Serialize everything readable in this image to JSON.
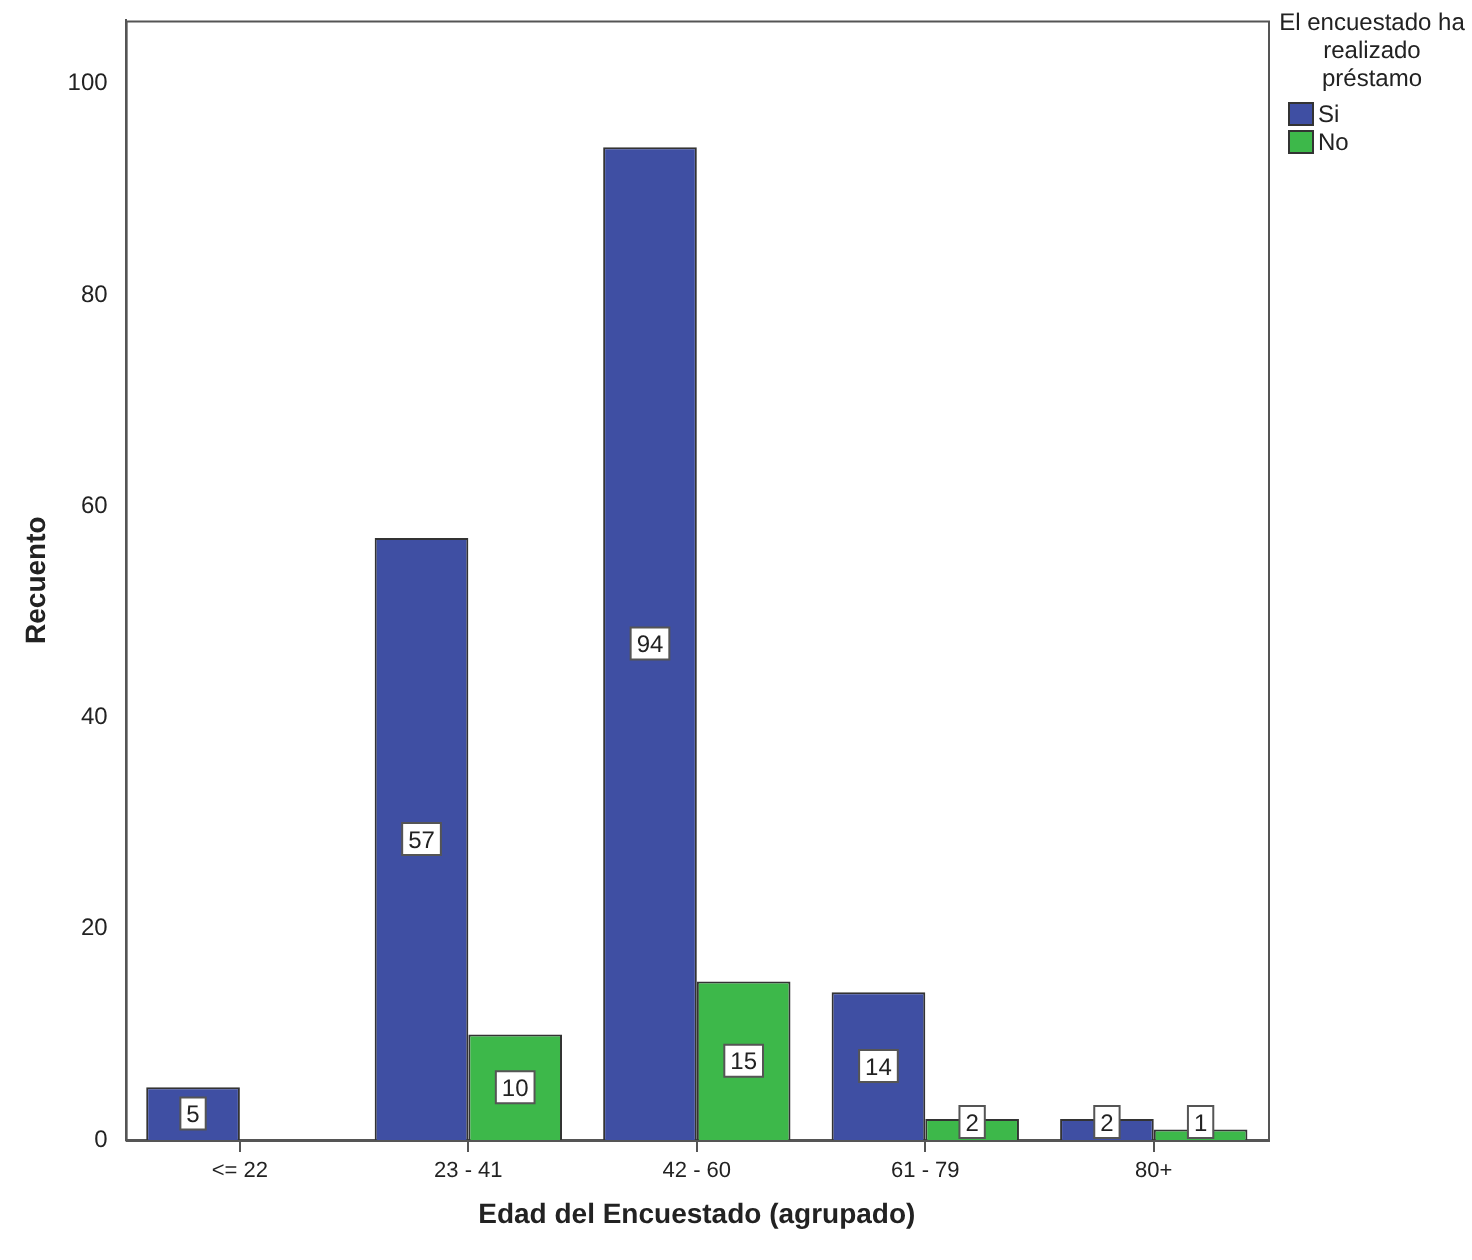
{
  "chart_data": {
    "type": "bar",
    "xlabel": "Edad del Encuestado (agrupado)",
    "ylabel": "Recuento",
    "legend_title": "El encuestado ha realizado préstamo",
    "categories": [
      "<= 22",
      "23 - 41",
      "42 - 60",
      "61 - 79",
      "80+"
    ],
    "series": [
      {
        "name": "Si",
        "color": "#3f4fa3",
        "values": [
          5,
          57,
          94,
          14,
          2
        ]
      },
      {
        "name": "No",
        "color": "#3db84a",
        "values": [
          null,
          10,
          15,
          2,
          1
        ]
      }
    ],
    "ylim": [
      0,
      106
    ],
    "yticks": [
      0,
      20,
      40,
      60,
      80,
      100
    ],
    "grid": false,
    "legend": "top right",
    "data_labels": true
  }
}
